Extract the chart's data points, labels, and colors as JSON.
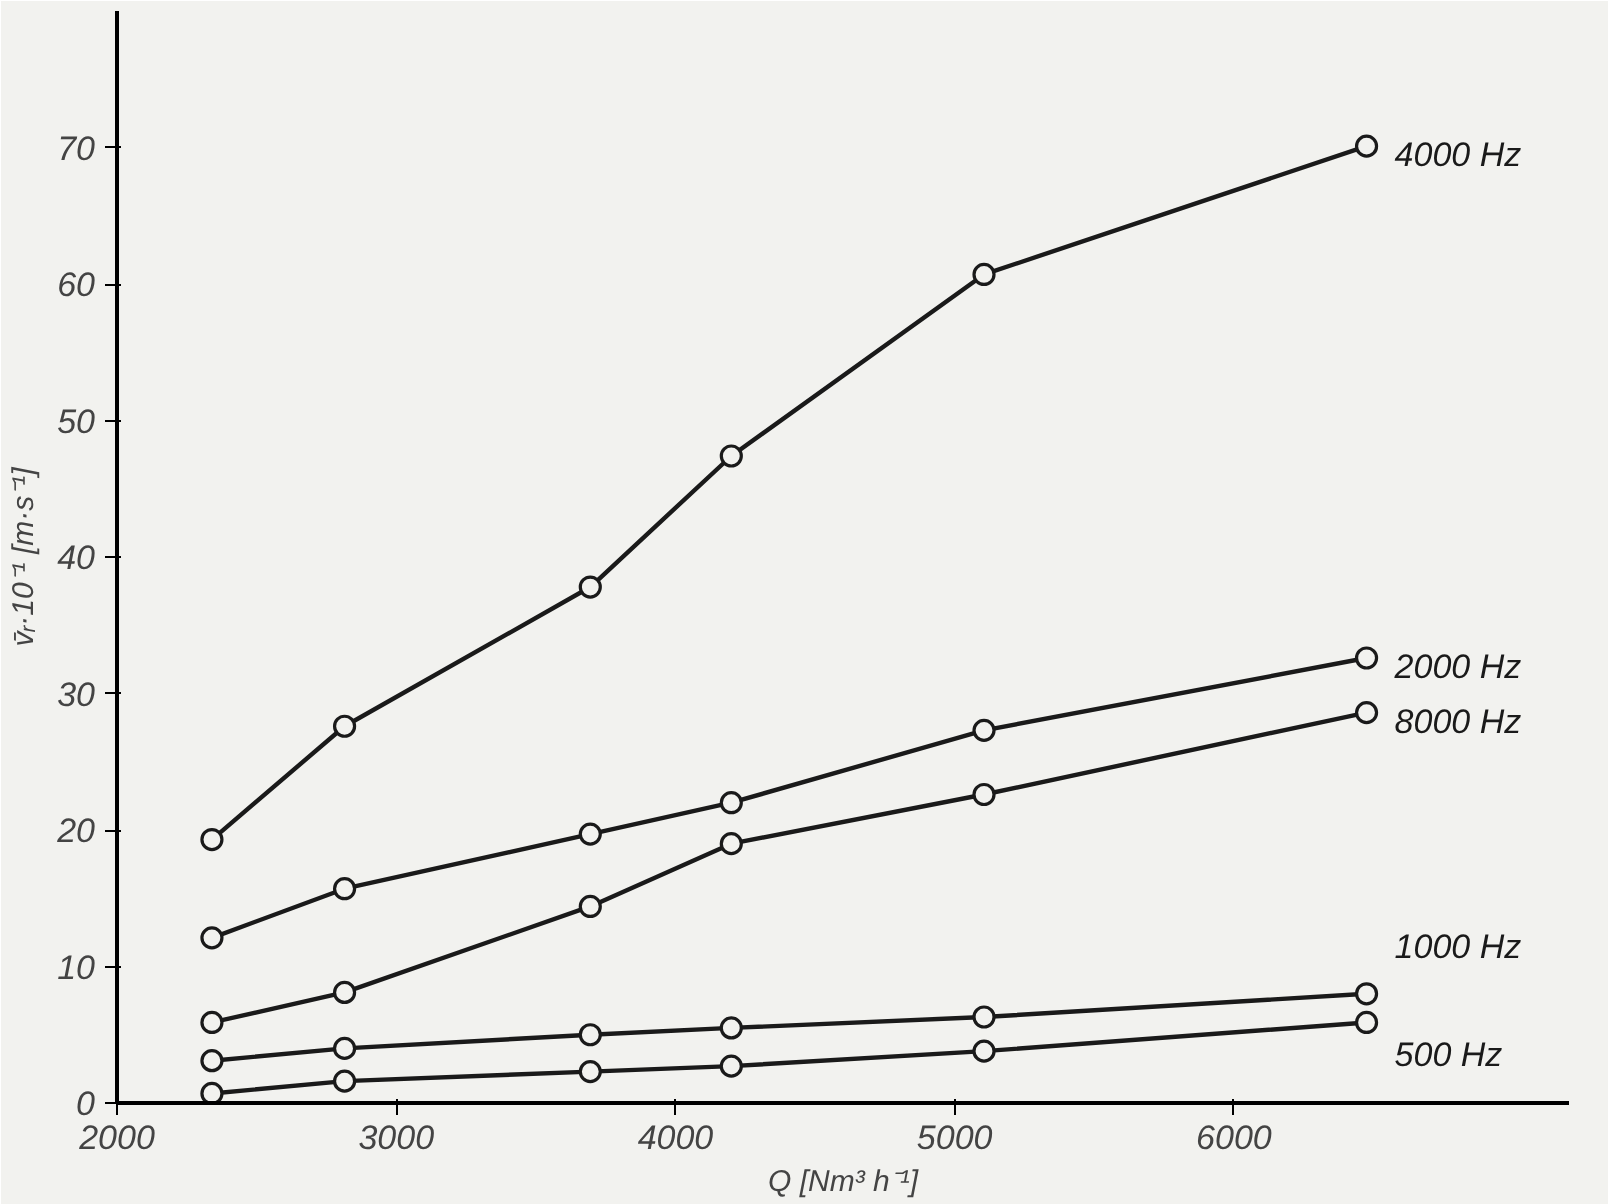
{
  "chart_data": {
    "type": "line",
    "xlabel": "Q [Nm³ h⁻¹]",
    "ylabel": "v̄ᵣ·10⁻¹ [m·s⁻¹]",
    "x": [
      2340,
      2815,
      3695,
      4200,
      5105,
      6475
    ],
    "series": [
      {
        "name": "4000 Hz",
        "color": "#1a1a1a",
        "values": [
          19.3,
          27.6,
          37.8,
          47.4,
          60.7,
          70.1
        ]
      },
      {
        "name": "2000 Hz",
        "color": "#1a1a1a",
        "values": [
          12.1,
          15.7,
          19.7,
          22.0,
          27.3,
          32.6
        ]
      },
      {
        "name": "8000 Hz",
        "color": "#1a1a1a",
        "values": [
          5.9,
          8.1,
          14.4,
          19.0,
          22.6,
          28.6
        ]
      },
      {
        "name": "1000 Hz",
        "color": "#1a1a1a",
        "values": [
          3.1,
          4.0,
          5.0,
          5.5,
          6.3,
          8.0
        ]
      },
      {
        "name": "500 Hz",
        "color": "#1a1a1a",
        "values": [
          0.7,
          1.6,
          2.3,
          2.7,
          3.8,
          5.9
        ]
      }
    ],
    "xlim": [
      2000,
      7200
    ],
    "ylim": [
      0,
      80
    ],
    "xticks": [
      2000,
      3000,
      4000,
      5000,
      6000
    ],
    "yticks": [
      0,
      10,
      20,
      30,
      40,
      50,
      60,
      70
    ],
    "grid": false,
    "marker": "circle",
    "line_style": "solid"
  }
}
